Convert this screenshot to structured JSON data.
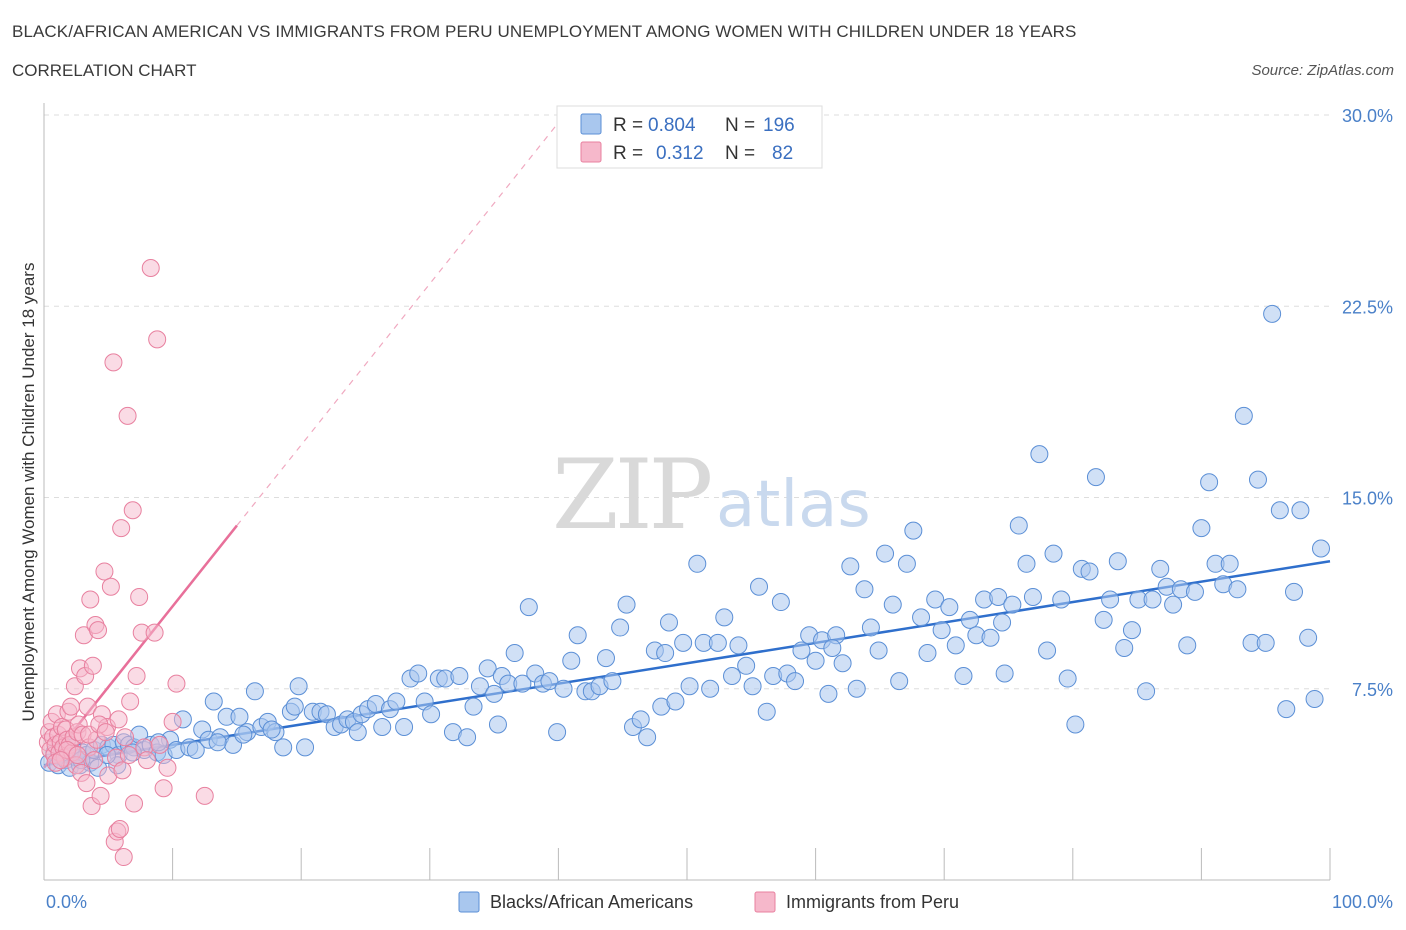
{
  "header": {
    "title": "BLACK/AFRICAN AMERICAN VS IMMIGRANTS FROM PERU UNEMPLOYMENT AMONG WOMEN WITH CHILDREN UNDER 18 YEARS",
    "subtitle": "CORRELATION CHART",
    "source": "Source: ZipAtlas.com"
  },
  "watermark": {
    "zip": "ZIP",
    "atlas": "atlas"
  },
  "legend": {
    "rows": [
      {
        "r_label": "R =",
        "r_value": "0.804",
        "n_label": "N =",
        "n_value": "196",
        "color": "#a9c7ee"
      },
      {
        "r_label": "R =",
        "r_value": "0.312",
        "n_label": "N =",
        "n_value": "82",
        "color": "#f6b8cb"
      }
    ]
  },
  "bottom_legend": [
    {
      "label": "Blacks/African Americans",
      "color": "#a9c7ee"
    },
    {
      "label": "Immigrants from Peru",
      "color": "#f6b8cb"
    }
  ],
  "colors": {
    "blue_fill": "#a9c7ee",
    "blue_stroke": "#5b8fd6",
    "blue_line": "#2f6fcc",
    "pink_fill": "#f6b8cb",
    "pink_stroke": "#e8809f",
    "pink_line": "#e8709a",
    "axis_label": "#4a80c8",
    "grid": "#dddddd"
  },
  "chart_data": {
    "type": "scatter",
    "ylabel": "Unemployment Among Women with Children Under 18 years",
    "xlim": [
      0,
      100
    ],
    "ylim": [
      0,
      30
    ],
    "y_ticks": [
      7.5,
      15.0,
      22.5,
      30.0
    ],
    "y_tick_labels": [
      "7.5%",
      "15.0%",
      "22.5%",
      "30.0%"
    ],
    "x_tick_labels": [
      "0.0%",
      "100.0%"
    ],
    "grid": "horizontal dashed",
    "legend_position": "top-center",
    "series": [
      {
        "name": "Blacks/African Americans",
        "color": "#a9c7ee",
        "r": 0.804,
        "n": 196,
        "trend": {
          "x": [
            0,
            100
          ],
          "y": [
            4.5,
            12.5
          ],
          "style": "solid"
        },
        "points": [
          [
            0.4,
            4.6
          ],
          [
            0.8,
            5.0
          ],
          [
            1.1,
            4.5
          ],
          [
            1.4,
            5.1
          ],
          [
            1.7,
            4.7
          ],
          [
            2.0,
            4.4
          ],
          [
            2.2,
            5.2
          ],
          [
            2.5,
            4.8
          ],
          [
            2.8,
            4.5
          ],
          [
            3.0,
            5.0
          ],
          [
            3.3,
            4.9
          ],
          [
            3.6,
            4.6
          ],
          [
            3.9,
            5.1
          ],
          [
            4.2,
            4.4
          ],
          [
            4.5,
            5.3
          ],
          [
            5.0,
            5.2
          ],
          [
            5.4,
            5.3
          ],
          [
            5.8,
            4.9
          ],
          [
            6.2,
            5.4
          ],
          [
            6.6,
            5.3
          ],
          [
            7.0,
            5.2
          ],
          [
            7.4,
            5.7
          ],
          [
            7.8,
            5.1
          ],
          [
            8.3,
            5.3
          ],
          [
            8.8,
            5.0
          ],
          [
            9.3,
            4.9
          ],
          [
            9.8,
            5.5
          ],
          [
            10.3,
            5.1
          ],
          [
            10.8,
            6.3
          ],
          [
            11.3,
            5.2
          ],
          [
            11.8,
            5.1
          ],
          [
            12.3,
            5.9
          ],
          [
            12.8,
            5.5
          ],
          [
            13.2,
            7.0
          ],
          [
            13.7,
            5.6
          ],
          [
            14.2,
            6.4
          ],
          [
            14.7,
            5.3
          ],
          [
            15.2,
            6.4
          ],
          [
            15.8,
            5.8
          ],
          [
            16.4,
            7.4
          ],
          [
            16.9,
            6.0
          ],
          [
            17.4,
            6.2
          ],
          [
            18.0,
            5.8
          ],
          [
            18.6,
            5.2
          ],
          [
            19.2,
            6.6
          ],
          [
            19.8,
            7.6
          ],
          [
            20.3,
            5.2
          ],
          [
            20.9,
            6.6
          ],
          [
            21.5,
            6.6
          ],
          [
            22.0,
            6.5
          ],
          [
            22.6,
            6.0
          ],
          [
            23.1,
            6.1
          ],
          [
            23.6,
            6.3
          ],
          [
            24.1,
            6.2
          ],
          [
            24.7,
            6.5
          ],
          [
            25.2,
            6.7
          ],
          [
            25.8,
            6.9
          ],
          [
            26.3,
            6.0
          ],
          [
            26.9,
            6.7
          ],
          [
            27.4,
            7.0
          ],
          [
            28.0,
            6.0
          ],
          [
            28.5,
            7.9
          ],
          [
            29.1,
            8.1
          ],
          [
            29.6,
            7.0
          ],
          [
            30.1,
            6.5
          ],
          [
            30.7,
            7.9
          ],
          [
            31.2,
            7.9
          ],
          [
            31.8,
            5.8
          ],
          [
            32.3,
            8.0
          ],
          [
            32.9,
            5.6
          ],
          [
            33.4,
            6.8
          ],
          [
            33.9,
            7.6
          ],
          [
            34.5,
            8.3
          ],
          [
            35.0,
            7.3
          ],
          [
            35.6,
            8.0
          ],
          [
            36.1,
            7.7
          ],
          [
            36.6,
            8.9
          ],
          [
            37.2,
            7.7
          ],
          [
            37.7,
            10.7
          ],
          [
            38.2,
            8.1
          ],
          [
            38.8,
            7.7
          ],
          [
            39.3,
            7.8
          ],
          [
            39.9,
            5.8
          ],
          [
            40.4,
            7.5
          ],
          [
            41.0,
            8.6
          ],
          [
            41.5,
            9.6
          ],
          [
            42.1,
            7.4
          ],
          [
            42.6,
            7.4
          ],
          [
            43.2,
            7.6
          ],
          [
            43.7,
            8.7
          ],
          [
            44.2,
            7.8
          ],
          [
            44.8,
            9.9
          ],
          [
            45.3,
            10.8
          ],
          [
            45.8,
            6.0
          ],
          [
            46.4,
            6.3
          ],
          [
            46.9,
            5.6
          ],
          [
            47.5,
            9.0
          ],
          [
            48.0,
            6.8
          ],
          [
            48.6,
            10.1
          ],
          [
            49.1,
            7.0
          ],
          [
            49.7,
            9.3
          ],
          [
            50.2,
            7.6
          ],
          [
            50.8,
            12.4
          ],
          [
            51.3,
            9.3
          ],
          [
            51.8,
            7.5
          ],
          [
            52.4,
            9.3
          ],
          [
            52.9,
            10.3
          ],
          [
            53.5,
            8.0
          ],
          [
            54.0,
            9.2
          ],
          [
            54.6,
            8.4
          ],
          [
            55.1,
            7.6
          ],
          [
            55.6,
            11.5
          ],
          [
            56.2,
            6.6
          ],
          [
            56.7,
            8.0
          ],
          [
            57.3,
            10.9
          ],
          [
            57.8,
            8.1
          ],
          [
            58.4,
            7.8
          ],
          [
            58.9,
            9.0
          ],
          [
            59.5,
            9.6
          ],
          [
            60.0,
            8.6
          ],
          [
            60.5,
            9.4
          ],
          [
            61.0,
            7.3
          ],
          [
            61.6,
            9.6
          ],
          [
            62.1,
            8.5
          ],
          [
            62.7,
            12.3
          ],
          [
            63.2,
            7.5
          ],
          [
            63.8,
            11.4
          ],
          [
            64.3,
            9.9
          ],
          [
            64.9,
            9.0
          ],
          [
            65.4,
            12.8
          ],
          [
            66.0,
            10.8
          ],
          [
            66.5,
            7.8
          ],
          [
            67.1,
            12.4
          ],
          [
            67.6,
            13.7
          ],
          [
            68.2,
            10.3
          ],
          [
            68.7,
            8.9
          ],
          [
            69.3,
            11.0
          ],
          [
            69.8,
            9.8
          ],
          [
            70.4,
            10.7
          ],
          [
            70.9,
            9.2
          ],
          [
            71.5,
            8.0
          ],
          [
            72.0,
            10.2
          ],
          [
            72.5,
            9.6
          ],
          [
            73.1,
            11.0
          ],
          [
            73.6,
            9.5
          ],
          [
            74.2,
            11.1
          ],
          [
            74.7,
            8.1
          ],
          [
            75.3,
            10.8
          ],
          [
            75.8,
            13.9
          ],
          [
            76.4,
            12.4
          ],
          [
            76.9,
            11.1
          ],
          [
            77.4,
            16.7
          ],
          [
            78.0,
            9.0
          ],
          [
            78.5,
            12.8
          ],
          [
            79.1,
            11.0
          ],
          [
            79.6,
            7.9
          ],
          [
            80.2,
            6.1
          ],
          [
            80.7,
            12.2
          ],
          [
            81.3,
            12.1
          ],
          [
            81.8,
            15.8
          ],
          [
            82.4,
            10.2
          ],
          [
            82.9,
            11.0
          ],
          [
            83.5,
            12.5
          ],
          [
            84.0,
            9.1
          ],
          [
            84.6,
            9.8
          ],
          [
            85.1,
            11.0
          ],
          [
            85.7,
            7.4
          ],
          [
            86.2,
            11.0
          ],
          [
            86.8,
            12.2
          ],
          [
            87.3,
            11.5
          ],
          [
            87.8,
            10.8
          ],
          [
            88.4,
            11.4
          ],
          [
            88.9,
            9.2
          ],
          [
            89.5,
            11.3
          ],
          [
            90.0,
            13.8
          ],
          [
            90.6,
            15.6
          ],
          [
            91.1,
            12.4
          ],
          [
            91.7,
            11.6
          ],
          [
            92.2,
            12.4
          ],
          [
            92.8,
            11.4
          ],
          [
            93.3,
            18.2
          ],
          [
            93.9,
            9.3
          ],
          [
            94.4,
            15.7
          ],
          [
            95.0,
            9.3
          ],
          [
            95.5,
            22.2
          ],
          [
            96.1,
            14.5
          ],
          [
            96.6,
            6.7
          ],
          [
            97.2,
            11.3
          ],
          [
            97.7,
            14.5
          ],
          [
            98.3,
            9.5
          ],
          [
            98.8,
            7.1
          ],
          [
            99.3,
            13.0
          ],
          [
            5.7,
            4.5
          ],
          [
            13.5,
            5.4
          ],
          [
            17.7,
            5.9
          ],
          [
            24.4,
            5.8
          ],
          [
            35.3,
            6.1
          ],
          [
            48.3,
            8.9
          ],
          [
            61.3,
            9.1
          ],
          [
            74.5,
            10.1
          ],
          [
            2.9,
            4.7
          ],
          [
            4.9,
            4.9
          ],
          [
            6.9,
            5.0
          ],
          [
            8.9,
            5.4
          ],
          [
            15.5,
            5.7
          ],
          [
            19.5,
            6.8
          ]
        ]
      },
      {
        "name": "Immigrants from Peru",
        "color": "#f6b8cb",
        "r": 0.312,
        "n": 82,
        "trend": {
          "x": [
            0,
            15.0
          ],
          "y": [
            4.4,
            13.9
          ],
          "style": "solid",
          "extended": {
            "x": [
              15.0,
              40.0
            ],
            "y": [
              13.9,
              29.7
            ],
            "style": "dashed"
          }
        },
        "points": [
          [
            0.3,
            5.4
          ],
          [
            0.4,
            5.8
          ],
          [
            0.5,
            5.1
          ],
          [
            0.6,
            6.2
          ],
          [
            0.7,
            5.6
          ],
          [
            0.8,
            4.9
          ],
          [
            0.9,
            5.3
          ],
          [
            1.0,
            6.5
          ],
          [
            1.1,
            5.7
          ],
          [
            1.2,
            5.0
          ],
          [
            1.3,
            5.4
          ],
          [
            1.4,
            6.0
          ],
          [
            1.5,
            5.2
          ],
          [
            1.6,
            4.8
          ],
          [
            1.7,
            5.9
          ],
          [
            1.8,
            5.5
          ],
          [
            1.9,
            6.6
          ],
          [
            2.0,
            5.3
          ],
          [
            2.1,
            6.8
          ],
          [
            2.2,
            5.0
          ],
          [
            2.3,
            5.6
          ],
          [
            2.4,
            7.6
          ],
          [
            2.5,
            4.5
          ],
          [
            2.6,
            5.8
          ],
          [
            2.7,
            6.1
          ],
          [
            2.8,
            8.3
          ],
          [
            2.9,
            4.2
          ],
          [
            3.0,
            5.7
          ],
          [
            3.1,
            9.6
          ],
          [
            3.2,
            8.0
          ],
          [
            3.3,
            3.8
          ],
          [
            3.4,
            6.8
          ],
          [
            3.5,
            5.2
          ],
          [
            3.6,
            11.0
          ],
          [
            3.7,
            2.9
          ],
          [
            3.8,
            8.4
          ],
          [
            3.9,
            4.7
          ],
          [
            4.0,
            10.0
          ],
          [
            4.1,
            5.5
          ],
          [
            4.2,
            9.8
          ],
          [
            4.4,
            3.3
          ],
          [
            4.5,
            6.5
          ],
          [
            4.7,
            12.1
          ],
          [
            4.9,
            6.0
          ],
          [
            5.0,
            4.1
          ],
          [
            5.2,
            11.5
          ],
          [
            5.4,
            20.3
          ],
          [
            5.5,
            1.5
          ],
          [
            5.6,
            4.8
          ],
          [
            5.7,
            1.9
          ],
          [
            5.8,
            6.3
          ],
          [
            5.9,
            2.0
          ],
          [
            6.0,
            13.8
          ],
          [
            6.1,
            4.3
          ],
          [
            6.2,
            0.9
          ],
          [
            6.3,
            5.6
          ],
          [
            6.5,
            18.2
          ],
          [
            6.7,
            7.0
          ],
          [
            6.9,
            14.5
          ],
          [
            7.0,
            3.0
          ],
          [
            7.2,
            8.0
          ],
          [
            7.4,
            11.1
          ],
          [
            7.6,
            9.7
          ],
          [
            7.8,
            5.2
          ],
          [
            8.0,
            4.7
          ],
          [
            8.3,
            24.0
          ],
          [
            8.6,
            9.7
          ],
          [
            8.8,
            21.2
          ],
          [
            9.0,
            5.3
          ],
          [
            9.3,
            3.6
          ],
          [
            9.6,
            4.4
          ],
          [
            10.0,
            6.2
          ],
          [
            10.3,
            7.7
          ],
          [
            12.5,
            3.3
          ],
          [
            0.9,
            4.6
          ],
          [
            1.8,
            5.1
          ],
          [
            2.6,
            4.9
          ],
          [
            3.5,
            5.7
          ],
          [
            4.3,
            6.1
          ],
          [
            4.8,
            5.8
          ],
          [
            6.6,
            4.9
          ],
          [
            1.3,
            4.7
          ]
        ]
      }
    ]
  }
}
